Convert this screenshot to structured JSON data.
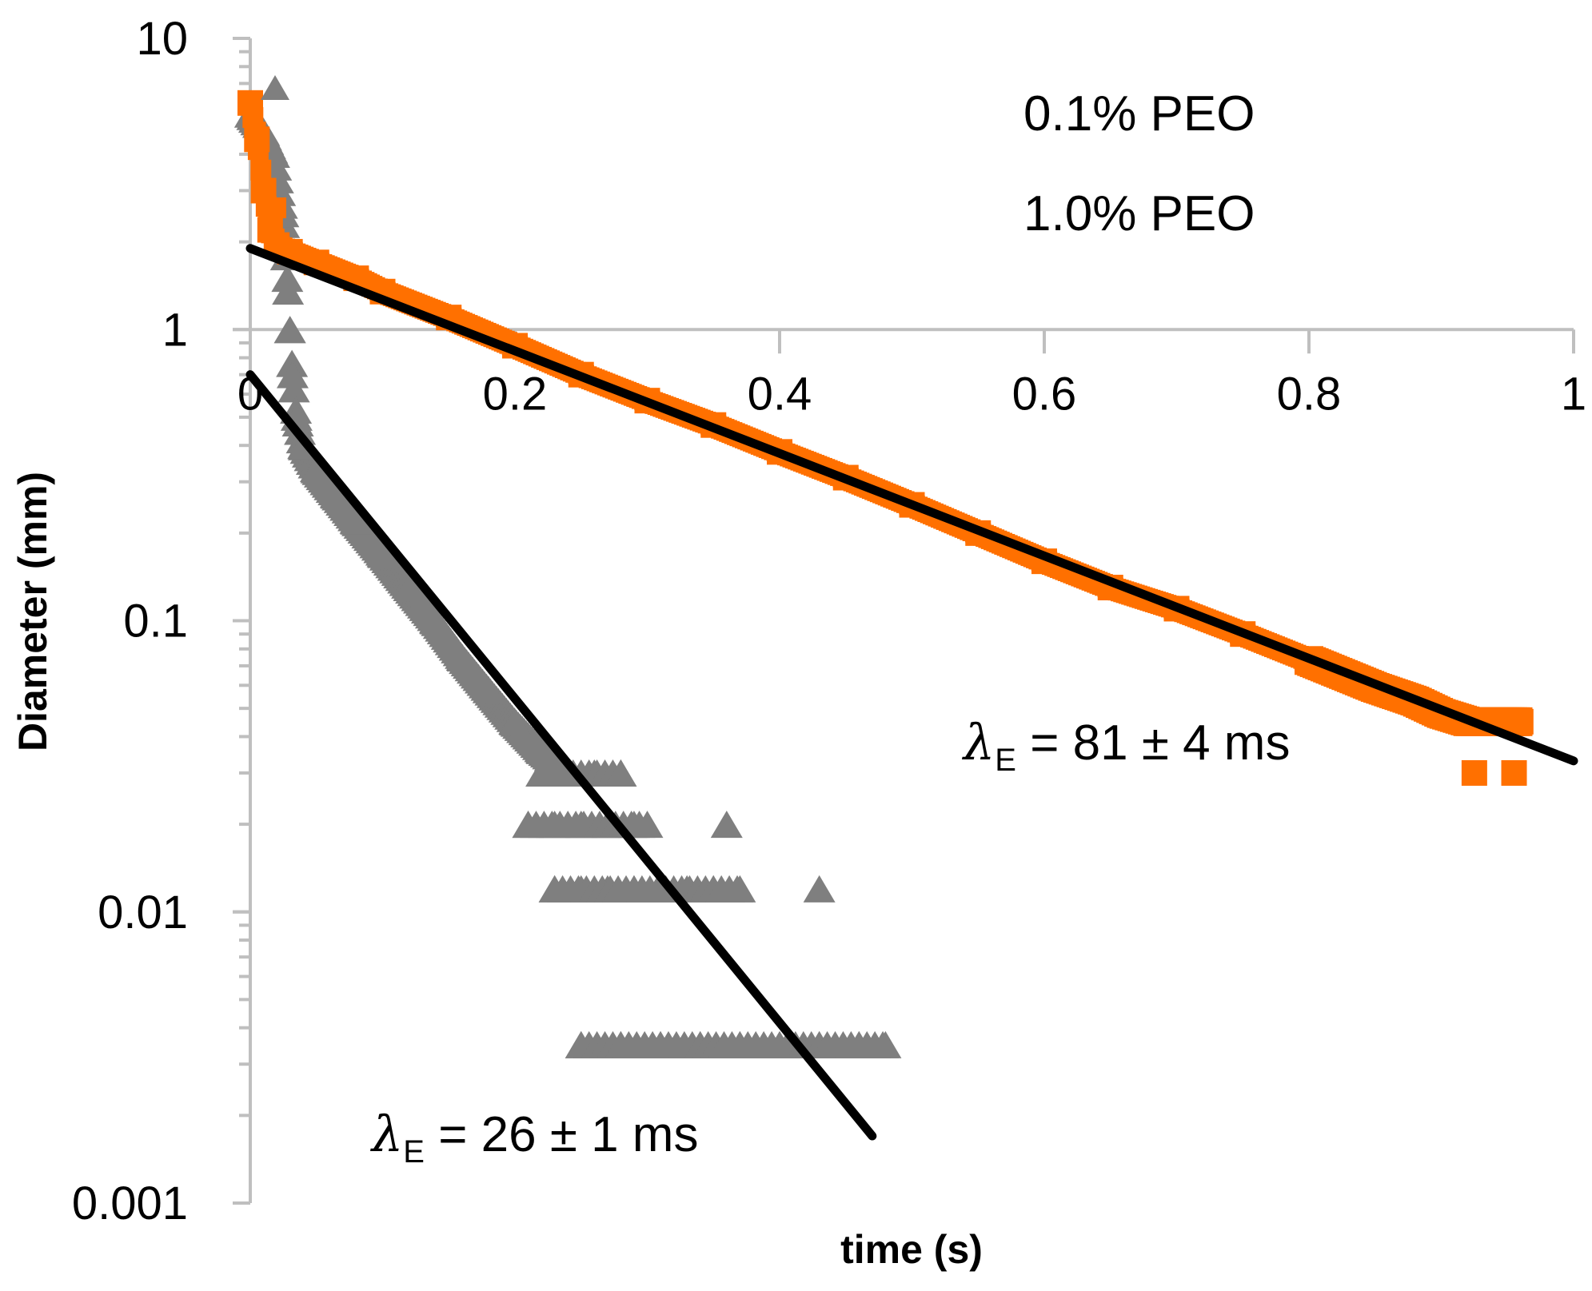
{
  "chart_data": {
    "type": "scatter",
    "title": "",
    "xlabel": "time (s)",
    "ylabel": "Diameter (mm)",
    "xscale": "linear",
    "yscale": "log",
    "xlim": [
      0,
      1
    ],
    "ylim": [
      0.001,
      10
    ],
    "x_ticks": [
      0,
      0.2,
      0.4,
      0.6,
      0.8,
      1
    ],
    "x_tick_labels": [
      "0",
      "0.2",
      "0.4",
      "0.6",
      "0.8",
      "1"
    ],
    "y_ticks": [
      0.001,
      0.01,
      0.1,
      1,
      10
    ],
    "y_tick_labels": [
      "0.001",
      "0.01",
      "0.1",
      "1",
      "10"
    ],
    "x_axis_crosses_y_at": 1,
    "legend_position": "top-right",
    "series": [
      {
        "name": "0.1% PEO",
        "marker": "triangle",
        "color": "#7f7f7f",
        "points": [
          [
            0.0,
            5.5
          ],
          [
            0.01,
            4.8
          ],
          [
            0.018,
            4.0
          ],
          [
            0.025,
            2.5
          ],
          [
            0.028,
            1.5
          ],
          [
            0.03,
            1.0
          ],
          [
            0.032,
            0.7
          ],
          [
            0.035,
            0.5
          ],
          [
            0.04,
            0.4
          ],
          [
            0.05,
            0.33
          ],
          [
            0.065,
            0.27
          ],
          [
            0.08,
            0.22
          ],
          [
            0.1,
            0.17
          ],
          [
            0.12,
            0.13
          ],
          [
            0.14,
            0.1
          ],
          [
            0.16,
            0.075
          ],
          [
            0.18,
            0.058
          ],
          [
            0.2,
            0.045
          ],
          [
            0.22,
            0.036
          ],
          [
            0.24,
            0.03
          ],
          [
            0.26,
            0.03
          ],
          [
            0.28,
            0.03
          ],
          [
            0.21,
            0.02
          ],
          [
            0.23,
            0.02
          ],
          [
            0.25,
            0.02
          ],
          [
            0.27,
            0.02
          ],
          [
            0.29,
            0.02
          ],
          [
            0.3,
            0.02
          ],
          [
            0.36,
            0.02
          ],
          [
            0.23,
            0.012
          ],
          [
            0.25,
            0.012
          ],
          [
            0.27,
            0.012
          ],
          [
            0.29,
            0.012
          ],
          [
            0.31,
            0.012
          ],
          [
            0.33,
            0.012
          ],
          [
            0.35,
            0.012
          ],
          [
            0.37,
            0.012
          ],
          [
            0.43,
            0.012
          ],
          [
            0.25,
            0.0035
          ],
          [
            0.28,
            0.0035
          ],
          [
            0.31,
            0.0035
          ],
          [
            0.34,
            0.0035
          ],
          [
            0.37,
            0.0035
          ],
          [
            0.4,
            0.0035
          ],
          [
            0.43,
            0.0035
          ],
          [
            0.46,
            0.0035
          ],
          [
            0.48,
            0.0035
          ]
        ],
        "fit": {
          "x": [
            0,
            0.47
          ],
          "y": [
            0.7,
            0.0017
          ]
        }
      },
      {
        "name": "1.0% PEO",
        "marker": "square",
        "color": "#ff7000",
        "points": [
          [
            0.0,
            6.0
          ],
          [
            0.005,
            4.5
          ],
          [
            0.01,
            3.0
          ],
          [
            0.015,
            2.2
          ],
          [
            0.02,
            1.95
          ],
          [
            0.03,
            1.85
          ],
          [
            0.05,
            1.7
          ],
          [
            0.08,
            1.5
          ],
          [
            0.1,
            1.35
          ],
          [
            0.15,
            1.1
          ],
          [
            0.2,
            0.88
          ],
          [
            0.25,
            0.7
          ],
          [
            0.3,
            0.57
          ],
          [
            0.35,
            0.47
          ],
          [
            0.4,
            0.38
          ],
          [
            0.45,
            0.31
          ],
          [
            0.5,
            0.25
          ],
          [
            0.55,
            0.2
          ],
          [
            0.6,
            0.16
          ],
          [
            0.65,
            0.13
          ],
          [
            0.7,
            0.11
          ],
          [
            0.75,
            0.09
          ],
          [
            0.8,
            0.073
          ],
          [
            0.85,
            0.059
          ],
          [
            0.88,
            0.053
          ],
          [
            0.9,
            0.048
          ],
          [
            0.92,
            0.045
          ],
          [
            0.94,
            0.045
          ],
          [
            0.96,
            0.045
          ],
          [
            0.925,
            0.03
          ],
          [
            0.955,
            0.03
          ]
        ],
        "fit": {
          "x": [
            0,
            1
          ],
          "y": [
            1.9,
            0.033
          ]
        }
      }
    ],
    "annotations": [
      {
        "lambda": "λ",
        "subscript": "E",
        "text": " = 81 ± 4 ms",
        "series": "1.0% PEO"
      },
      {
        "lambda": "λ",
        "subscript": "E",
        "text": " = 26 ± 1 ms",
        "series": "0.1% PEO"
      }
    ]
  }
}
